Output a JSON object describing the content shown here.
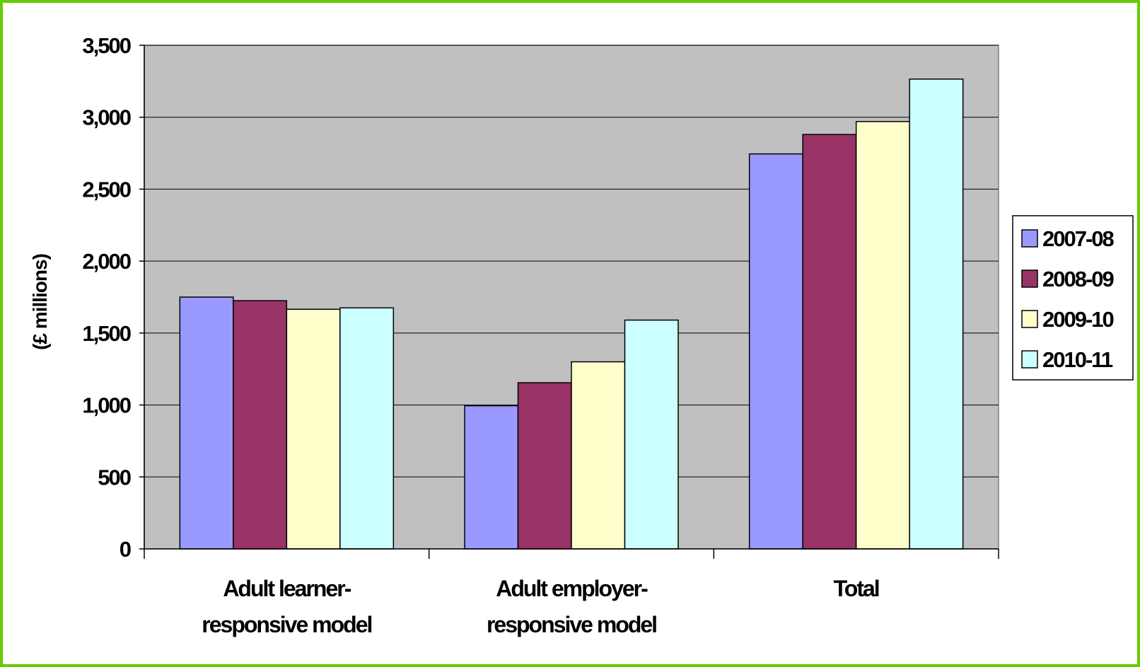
{
  "chart_data": {
    "type": "bar",
    "title": "",
    "xlabel": "",
    "ylabel": "(£ millions)",
    "categories": [
      [
        "Adult learner-",
        "responsive model"
      ],
      [
        "Adult employer-",
        "responsive model"
      ],
      [
        "Total"
      ]
    ],
    "series": [
      {
        "name": "2007-08",
        "color": "#9999ff",
        "values": [
          1750,
          995,
          2745
        ]
      },
      {
        "name": "2008-09",
        "color": "#993366",
        "values": [
          1725,
          1155,
          2880
        ]
      },
      {
        "name": "2009-10",
        "color": "#ffffcc",
        "values": [
          1665,
          1300,
          2970
        ]
      },
      {
        "name": "2010-11",
        "color": "#ccffff",
        "values": [
          1675,
          1590,
          3265
        ]
      }
    ],
    "ylim": [
      0,
      3500
    ],
    "yticks": [
      "0",
      "500",
      "1,000",
      "1,500",
      "2,000",
      "2,500",
      "3,000",
      "3,500"
    ],
    "ytick_values": [
      0,
      500,
      1000,
      1500,
      2000,
      2500,
      3000,
      3500
    ],
    "grid": true,
    "legend_position": "right",
    "plot_background": "#c0c0c0",
    "frame_color": "#66cc00"
  }
}
